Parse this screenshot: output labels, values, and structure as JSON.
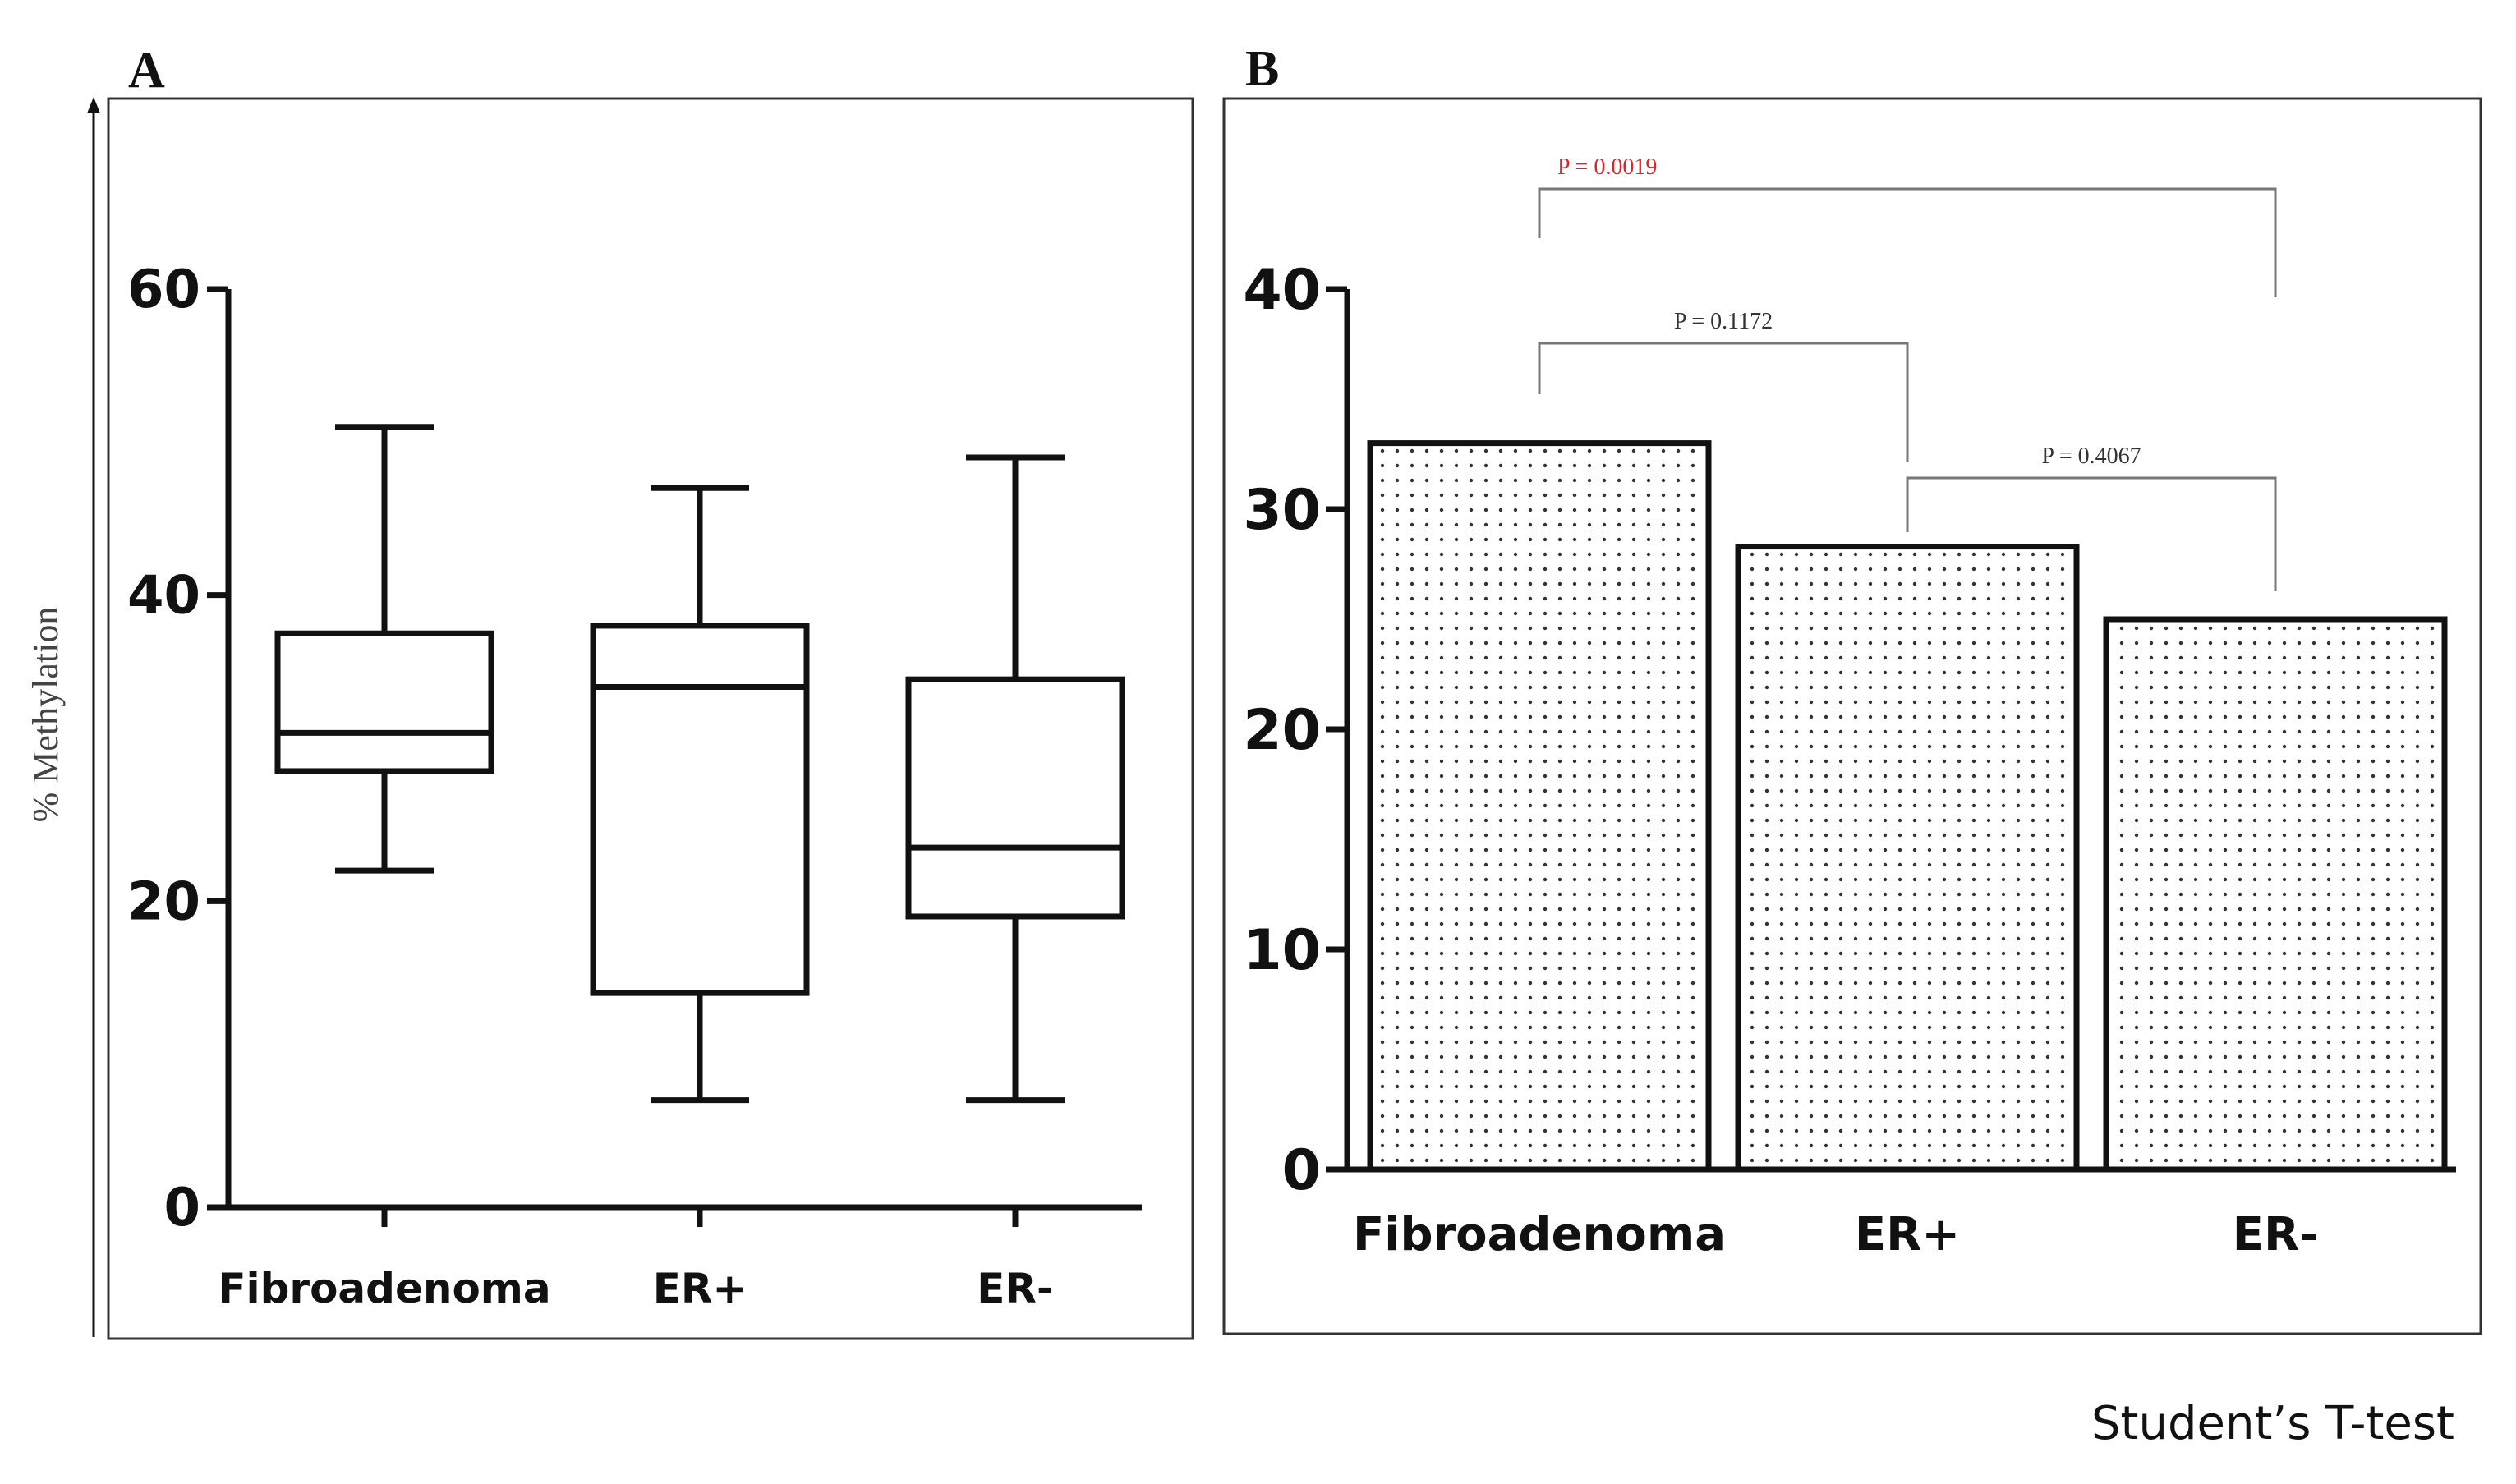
{
  "panels": {
    "a": {
      "letter": "A"
    },
    "b": {
      "letter": "B"
    }
  },
  "footer_note": "Student’s T-test",
  "colors": {
    "axis": "#111111",
    "significant": "#e8202a",
    "non_significant": "#333333",
    "bracket": "#777777"
  },
  "chart_data": [
    {
      "type": "box",
      "panel": "A",
      "title": "",
      "ylabel": "% Methylation",
      "ylim": [
        0,
        60
      ],
      "yticks": [
        0,
        20,
        40,
        60
      ],
      "categories": [
        "Fibroadenoma",
        "ER+",
        "ER-"
      ],
      "boxes": [
        {
          "category": "Fibroadenoma",
          "min": 22,
          "q1": 28.5,
          "median": 31,
          "q3": 37.5,
          "max": 51
        },
        {
          "category": "ER+",
          "min": 7,
          "q1": 14,
          "median": 34,
          "q3": 38,
          "max": 47
        },
        {
          "category": "ER-",
          "min": 7,
          "q1": 19,
          "median": 23.5,
          "q3": 34.5,
          "max": 49
        }
      ],
      "grid": false
    },
    {
      "type": "bar",
      "panel": "B",
      "title": "",
      "ylim": [
        0,
        40
      ],
      "yticks": [
        0,
        10,
        20,
        30,
        40
      ],
      "categories": [
        "Fibroadenoma",
        "ER+",
        "ER-"
      ],
      "values": [
        33,
        28.3,
        25
      ],
      "fill_pattern": "dotted",
      "comparisons": [
        {
          "from": "Fibroadenoma",
          "to": "ER-",
          "label": "P = 0.0019",
          "significant": true
        },
        {
          "from": "Fibroadenoma",
          "to": "ER+",
          "label": "P = 0.1172",
          "significant": false
        },
        {
          "from": "ER+",
          "to": "ER-",
          "label": "P = 0.4067",
          "significant": false
        }
      ],
      "grid": false
    }
  ]
}
